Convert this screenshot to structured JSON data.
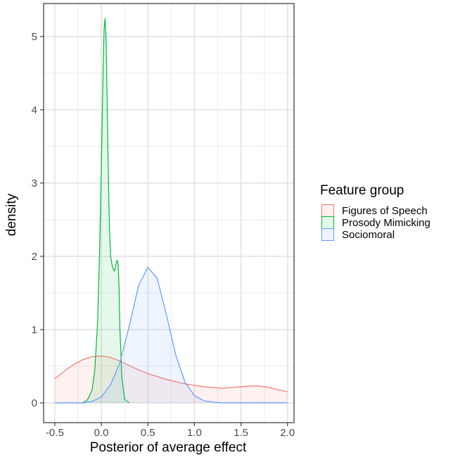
{
  "chart_data": {
    "type": "area",
    "xlabel": "Posterior of average effect",
    "ylabel": "density",
    "xlim": [
      -0.62,
      2.07
    ],
    "ylim": [
      -0.27,
      5.45
    ],
    "x_ticks": [
      -0.5,
      0.0,
      0.5,
      1.0,
      1.5,
      2.0
    ],
    "x_tick_labels": [
      "-0.5",
      "0.0",
      "0.5",
      "1.0",
      "1.5",
      "2.0"
    ],
    "y_ticks": [
      0,
      1,
      2,
      3,
      4,
      5
    ],
    "y_tick_labels": [
      "0",
      "1",
      "2",
      "3",
      "4",
      "5"
    ],
    "grid": true,
    "legend": {
      "title": "Feature group",
      "position": "right"
    },
    "series": [
      {
        "name": "Figures of Speech",
        "color": "#F8766D",
        "x": [
          -0.5,
          -0.4,
          -0.3,
          -0.2,
          -0.1,
          0.0,
          0.1,
          0.2,
          0.3,
          0.4,
          0.5,
          0.6,
          0.7,
          0.8,
          0.9,
          1.0,
          1.1,
          1.2,
          1.3,
          1.4,
          1.5,
          1.6,
          1.7,
          1.8,
          1.9,
          2.0
        ],
        "y": [
          0.33,
          0.43,
          0.52,
          0.59,
          0.63,
          0.64,
          0.62,
          0.57,
          0.51,
          0.45,
          0.4,
          0.36,
          0.32,
          0.29,
          0.26,
          0.24,
          0.22,
          0.21,
          0.2,
          0.21,
          0.22,
          0.23,
          0.23,
          0.21,
          0.18,
          0.15
        ]
      },
      {
        "name": "Prosody Mimicking",
        "color": "#00BA38",
        "x": [
          -0.2,
          -0.15,
          -0.1,
          -0.07,
          -0.04,
          -0.02,
          0.0,
          0.01,
          0.02,
          0.03,
          0.04,
          0.05,
          0.06,
          0.07,
          0.08,
          0.09,
          0.1,
          0.12,
          0.14,
          0.16,
          0.17,
          0.18,
          0.19,
          0.2,
          0.22,
          0.25,
          0.3
        ],
        "y": [
          0.0,
          0.04,
          0.17,
          0.45,
          1.1,
          2.0,
          3.2,
          3.9,
          4.6,
          5.1,
          5.25,
          5.0,
          4.3,
          3.5,
          2.8,
          2.3,
          2.0,
          1.85,
          1.8,
          1.9,
          1.95,
          1.9,
          1.6,
          1.0,
          0.35,
          0.05,
          0.0
        ]
      },
      {
        "name": "Sociomoral",
        "color": "#619CFF",
        "x": [
          -0.5,
          -0.2,
          -0.1,
          0.0,
          0.1,
          0.2,
          0.3,
          0.4,
          0.5,
          0.6,
          0.7,
          0.8,
          0.9,
          1.0,
          1.1,
          1.2,
          1.3,
          1.5,
          2.0
        ],
        "y": [
          0.0,
          0.0,
          0.02,
          0.08,
          0.25,
          0.55,
          1.05,
          1.6,
          1.85,
          1.7,
          1.2,
          0.65,
          0.28,
          0.1,
          0.03,
          0.01,
          0.0,
          0.0,
          0.0
        ]
      }
    ]
  }
}
